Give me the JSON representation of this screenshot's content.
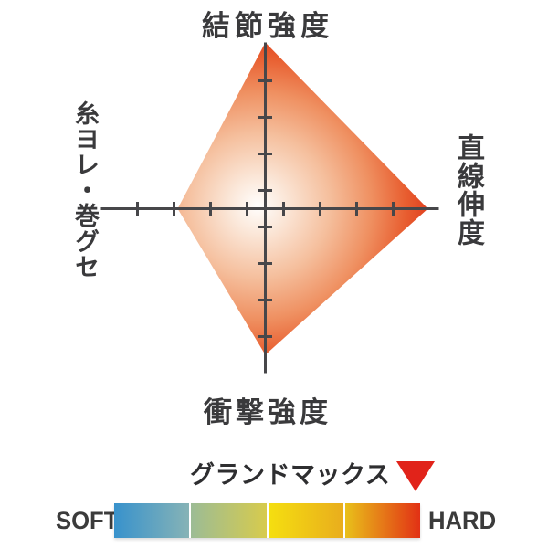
{
  "chart_data": {
    "type": "radar",
    "description": "Four-axis diamond radar chart of fishing line properties",
    "axes_labels": {
      "top": "結節強度",
      "right": "直線伸度",
      "bottom": "衝撃強度",
      "left": "糸ヨレ・巻グセ"
    },
    "series": [
      {
        "name": "グランドマックス",
        "values": {
          "top": 4.55,
          "right": 4.45,
          "bottom": 4.0,
          "left": 2.4
        }
      }
    ],
    "scale": {
      "tick_positions": [
        0.5,
        1.5,
        2.5,
        3.5
      ],
      "axis_end": {
        "up": 4.55,
        "right": 4.75,
        "down": 4.5,
        "left": 4.5
      }
    },
    "layout_hints": {
      "grid": "cross-axes-with-ticks",
      "legend_position": "bottom"
    },
    "colors": {
      "axis": "#47474a",
      "fill_center": "#fffefd",
      "fill_mid": "#f3b793",
      "fill_edge": "#de3418"
    }
  },
  "legend": {
    "series_label": "グランドマックス",
    "marker_icon": "red-triangle-down",
    "marker_color": "#e1231a",
    "scale_left_label": "SOFT",
    "scale_right_label": "HARD",
    "bar_segments": [
      {
        "from": "#3892cc",
        "to": "#86b3b6"
      },
      {
        "from": "#9cbc95",
        "to": "#d7cb4d"
      },
      {
        "from": "#f5df10",
        "to": "#e9ad1d"
      },
      {
        "from": "#e9c01a",
        "to": "#e23115"
      }
    ]
  }
}
